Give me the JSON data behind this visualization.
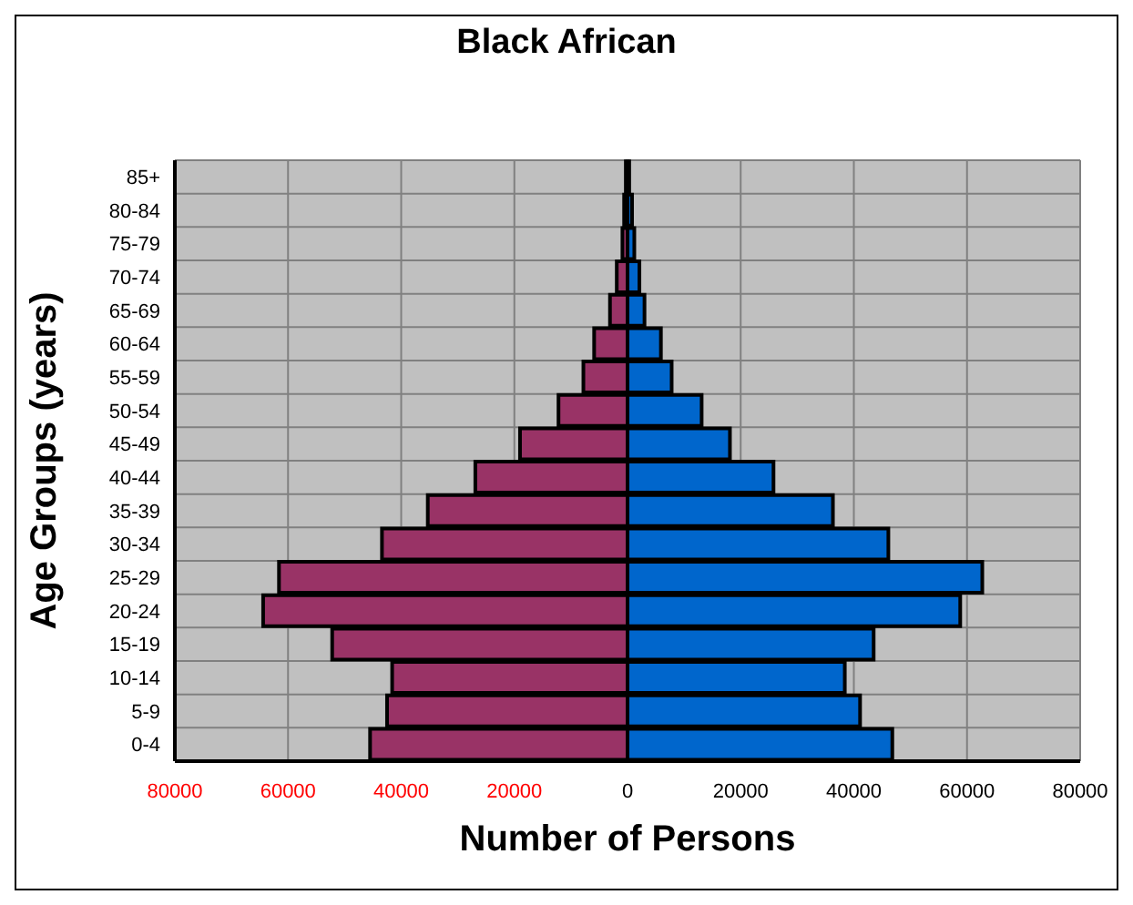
{
  "chart_data": {
    "type": "bar",
    "orientation": "horizontal",
    "stacked": true,
    "title": "Black African",
    "xlabel": "Number of Persons",
    "ylabel": "Age Groups (years)",
    "categories": [
      "85+",
      "80-84",
      "75-79",
      "70-74",
      "65-69",
      "60-64",
      "55-59",
      "50-54",
      "45-49",
      "40-44",
      "35-39",
      "30-34",
      "25-29",
      "20-24",
      "15-19",
      "10-14",
      "5-9",
      "0-4"
    ],
    "series": [
      {
        "color": "#993366",
        "values": [
          -300,
          -600,
          -900,
          -1900,
          -3100,
          -5900,
          -7800,
          -12200,
          -19000,
          -26900,
          -35300,
          -43400,
          -61600,
          -64400,
          -52200,
          -41600,
          -42500,
          -45500
        ]
      },
      {
        "color": "#0066cc",
        "values": [
          300,
          800,
          1200,
          2100,
          3000,
          5900,
          7800,
          13100,
          18100,
          25800,
          36300,
          46100,
          62700,
          58800,
          43500,
          38400,
          41100,
          46800
        ]
      }
    ],
    "xlim": [
      -80000,
      80000
    ],
    "xticks": [
      {
        "value": -80000,
        "label": "80000"
      },
      {
        "value": -60000,
        "label": "60000"
      },
      {
        "value": -40000,
        "label": "40000"
      },
      {
        "value": -20000,
        "label": "20000"
      },
      0,
      20000,
      40000,
      60000,
      80000
    ],
    "grid": true
  }
}
